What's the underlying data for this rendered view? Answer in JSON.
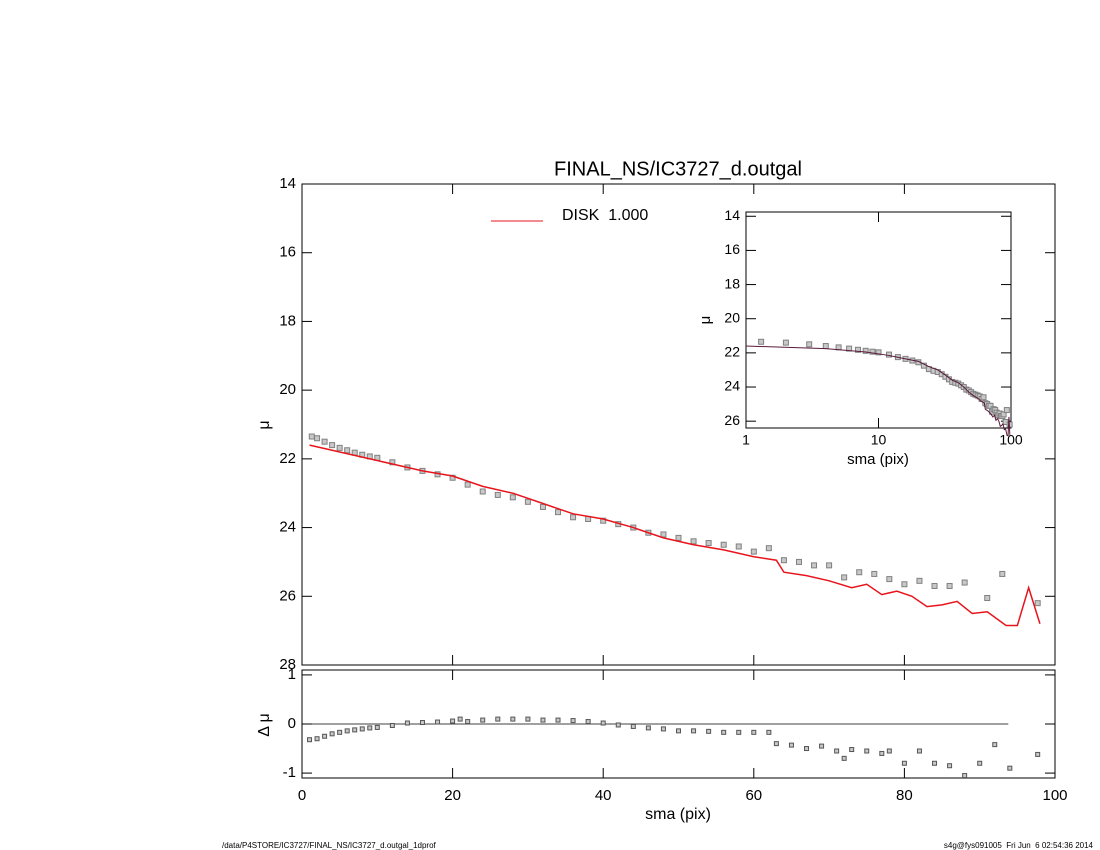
{
  "footer_left": "/data/P4STORE/IC3727/FINAL_NS/IC3727_d.outgal_1dprof",
  "footer_right": "s4g@fys091005  Fri Jun  6 02:54:36 2014",
  "chart_data": [
    {
      "type": "line",
      "title": "FINAL_NS/IC3727_d.outgal",
      "ylabel": "μ",
      "ylim": [
        28,
        14
      ],
      "yticks": [
        14,
        16,
        18,
        20,
        22,
        24,
        26,
        28
      ],
      "series": [
        {
          "color": "#808080",
          "marker": "square",
          "x": [
            1.3,
            2,
            3,
            4,
            5,
            6,
            7,
            8,
            9,
            10,
            12,
            14,
            16,
            18,
            20,
            22,
            24,
            26,
            28,
            30,
            32,
            34,
            36,
            38,
            40,
            42,
            44,
            46,
            48,
            50,
            52,
            54,
            56,
            58,
            60,
            62,
            64,
            66,
            68,
            70,
            72,
            74,
            76,
            78,
            80,
            82,
            84,
            86,
            88,
            91,
            93,
            97.7
          ],
          "values": [
            21.35,
            21.4,
            21.5,
            21.6,
            21.68,
            21.75,
            21.82,
            21.88,
            21.93,
            21.97,
            22.1,
            22.25,
            22.35,
            22.45,
            22.55,
            22.75,
            22.95,
            23.05,
            23.12,
            23.25,
            23.4,
            23.55,
            23.7,
            23.75,
            23.8,
            23.9,
            24.0,
            24.15,
            24.2,
            24.3,
            24.4,
            24.45,
            24.5,
            24.55,
            24.7,
            24.6,
            24.95,
            25.0,
            25.1,
            25.1,
            25.45,
            25.3,
            25.35,
            25.5,
            25.65,
            25.55,
            25.7,
            25.7,
            25.6,
            26.05,
            25.35,
            26.2
          ]
        },
        {
          "name": "DISK  1.000",
          "color": "#e8141c",
          "marker": "line",
          "x": [
            1,
            4,
            8,
            12,
            16,
            20,
            24,
            28,
            32,
            36,
            40,
            44,
            48,
            52,
            56,
            60,
            63,
            64,
            67,
            70,
            73,
            75,
            77,
            79,
            81,
            83,
            85,
            87,
            89,
            91,
            93.5,
            95,
            96.5,
            98
          ],
          "values": [
            21.6,
            21.75,
            21.95,
            22.15,
            22.35,
            22.5,
            22.8,
            23.0,
            23.3,
            23.6,
            23.75,
            24.0,
            24.3,
            24.5,
            24.65,
            24.85,
            24.95,
            25.3,
            25.4,
            25.55,
            25.75,
            25.65,
            25.95,
            25.85,
            26.0,
            26.3,
            26.25,
            26.15,
            26.5,
            26.45,
            26.85,
            26.85,
            25.75,
            26.8
          ]
        }
      ]
    },
    {
      "type": "scatter",
      "xlabel": "sma (pix)",
      "ylabel": "Δ μ",
      "xlim": [
        0,
        100
      ],
      "xticks": [
        0,
        20,
        40,
        60,
        80,
        100
      ],
      "ylim": [
        -1.1,
        1.1
      ],
      "yticks": [
        -1,
        0,
        1
      ],
      "zero_line": {
        "value": 0,
        "x": [
          0,
          93.8
        ]
      },
      "color": "#555555",
      "x": [
        1,
        2,
        3,
        4,
        5,
        6,
        7,
        8,
        9,
        10,
        12,
        14,
        16,
        18,
        20,
        21,
        22,
        24,
        26,
        28,
        30,
        32,
        34,
        36,
        38,
        40,
        42,
        44,
        46,
        48,
        50,
        52,
        54,
        56,
        58,
        60,
        62,
        63,
        65,
        67,
        69,
        71,
        72,
        73,
        75,
        77,
        78,
        80,
        82,
        84,
        86,
        88,
        90,
        92,
        94,
        97.7
      ],
      "values": [
        -0.32,
        -0.3,
        -0.25,
        -0.2,
        -0.17,
        -0.14,
        -0.12,
        -0.1,
        -0.08,
        -0.07,
        -0.03,
        0.02,
        0.03,
        0.04,
        0.06,
        0.1,
        0.05,
        0.08,
        0.1,
        0.1,
        0.1,
        0.08,
        0.08,
        0.07,
        0.05,
        0.02,
        -0.02,
        -0.05,
        -0.08,
        -0.1,
        -0.14,
        -0.14,
        -0.15,
        -0.17,
        -0.17,
        -0.17,
        -0.17,
        -0.4,
        -0.43,
        -0.5,
        -0.45,
        -0.55,
        -0.7,
        -0.52,
        -0.55,
        -0.6,
        -0.55,
        -0.8,
        -0.55,
        -0.8,
        -0.85,
        -1.05,
        -0.8,
        -0.42,
        -0.9,
        -0.62
      ]
    },
    {
      "type": "line",
      "xlog": true,
      "xlabel": "sma (pix)",
      "ylabel": "μ",
      "xlim": [
        1,
        100
      ],
      "xticks": [
        1,
        10,
        100
      ],
      "ylim": [
        26.4,
        13.75
      ],
      "yticks": [
        14,
        16,
        18,
        20,
        22,
        24,
        26
      ],
      "model_color": "#5a1a3a"
    }
  ]
}
